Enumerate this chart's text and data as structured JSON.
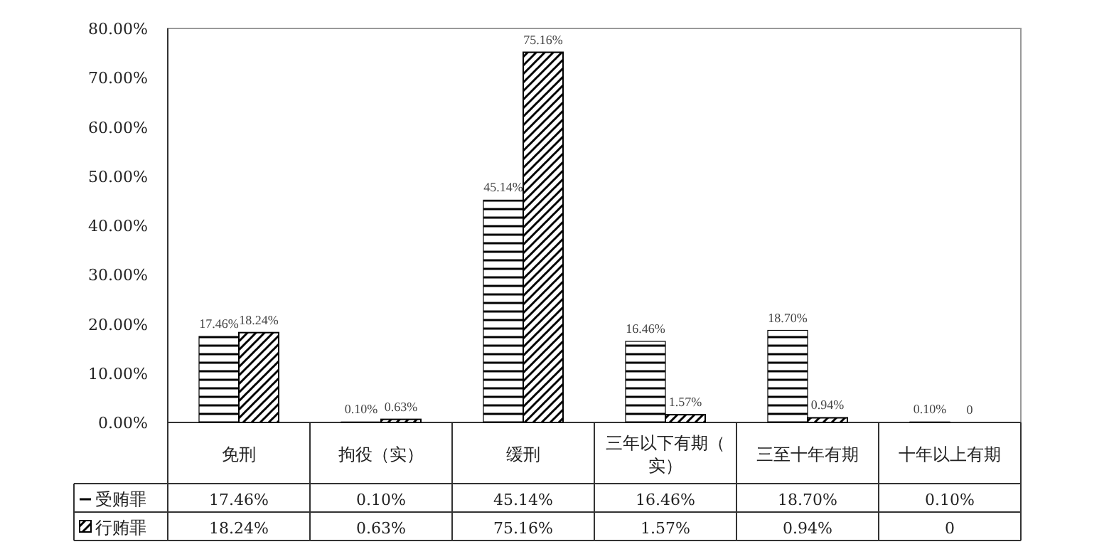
{
  "chart_data": {
    "type": "bar",
    "categories": [
      "免刑",
      "拘役（实）",
      "缓刑",
      "三年以下有期（实）",
      "三至十年有期",
      "十年以上有期"
    ],
    "series": [
      {
        "name": "受贿罪",
        "color": "#000000",
        "values": [
          17.46,
          0.1,
          45.14,
          16.46,
          18.7,
          0.1
        ],
        "value_labels": [
          "17.46%",
          "0.10%",
          "45.14%",
          "16.46%",
          "18.70%",
          "0.10%"
        ]
      },
      {
        "name": "行贿罪",
        "color": "#000000",
        "values": [
          18.24,
          0.63,
          75.16,
          1.57,
          0.94,
          0
        ],
        "value_labels": [
          "18.24%",
          "0.63%",
          "75.16%",
          "1.57%",
          "0.94%",
          "0"
        ]
      }
    ],
    "ylim": [
      0,
      80
    ],
    "yticks": [
      {
        "value": 0,
        "label": "0.00%"
      },
      {
        "value": 10,
        "label": "10.00%"
      },
      {
        "value": 20,
        "label": "20.00%"
      },
      {
        "value": 30,
        "label": "30.00%"
      },
      {
        "value": 40,
        "label": "40.00%"
      },
      {
        "value": 50,
        "label": "50.00%"
      },
      {
        "value": 60,
        "label": "60.00%"
      },
      {
        "value": 70,
        "label": "70.00%"
      },
      {
        "value": 80,
        "label": "80.00%"
      }
    ],
    "grid": false,
    "legend": "bottom"
  }
}
